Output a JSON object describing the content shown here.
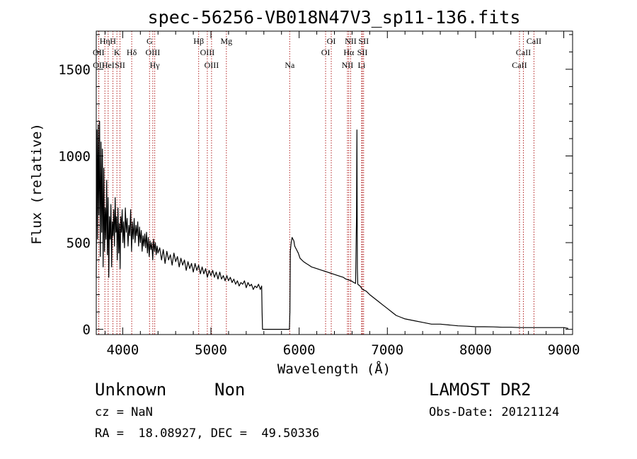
{
  "chart_data": {
    "type": "line",
    "title": "spec-56256-VB018N47V3_sp11-136.fits",
    "xlabel": "Wavelength (Å)",
    "ylabel": "Flux (relative)",
    "xlim": [
      3700,
      9100
    ],
    "ylim": [
      -30,
      1720
    ],
    "xticks": [
      4000,
      5000,
      6000,
      7000,
      8000,
      9000
    ],
    "yticks": [
      0,
      500,
      1000,
      1500
    ],
    "grid": false,
    "line_color": "#000000",
    "marker_color": "#b22222",
    "series": [
      {
        "points": [
          [
            3700,
            300
          ],
          [
            3708,
            1150
          ],
          [
            3715,
            520
          ],
          [
            3722,
            1180
          ],
          [
            3730,
            660
          ],
          [
            3738,
            1200
          ],
          [
            3746,
            420
          ],
          [
            3754,
            1080
          ],
          [
            3762,
            560
          ],
          [
            3770,
            1040
          ],
          [
            3778,
            360
          ],
          [
            3786,
            930
          ],
          [
            3794,
            450
          ],
          [
            3802,
            700
          ],
          [
            3810,
            520
          ],
          [
            3818,
            860
          ],
          [
            3826,
            430
          ],
          [
            3834,
            760
          ],
          [
            3842,
            300
          ],
          [
            3850,
            650
          ],
          [
            3858,
            520
          ],
          [
            3866,
            720
          ],
          [
            3874,
            360
          ],
          [
            3882,
            620
          ],
          [
            3890,
            540
          ],
          [
            3898,
            690
          ],
          [
            3906,
            480
          ],
          [
            3914,
            760
          ],
          [
            3922,
            560
          ],
          [
            3930,
            650
          ],
          [
            3938,
            400
          ],
          [
            3946,
            700
          ],
          [
            3954,
            440
          ],
          [
            3962,
            610
          ],
          [
            3970,
            350
          ],
          [
            3978,
            650
          ],
          [
            3986,
            560
          ],
          [
            3994,
            690
          ],
          [
            4002,
            500
          ],
          [
            4010,
            620
          ],
          [
            4020,
            470
          ],
          [
            4030,
            700
          ],
          [
            4040,
            560
          ],
          [
            4050,
            640
          ],
          [
            4060,
            480
          ],
          [
            4070,
            600
          ],
          [
            4080,
            540
          ],
          [
            4090,
            690
          ],
          [
            4100,
            450
          ],
          [
            4110,
            620
          ],
          [
            4120,
            520
          ],
          [
            4130,
            640
          ],
          [
            4140,
            500
          ],
          [
            4150,
            600
          ],
          [
            4160,
            540
          ],
          [
            4170,
            620
          ],
          [
            4180,
            480
          ],
          [
            4190,
            590
          ],
          [
            4200,
            500
          ],
          [
            4210,
            570
          ],
          [
            4220,
            450
          ],
          [
            4230,
            540
          ],
          [
            4240,
            480
          ],
          [
            4250,
            550
          ],
          [
            4260,
            470
          ],
          [
            4270,
            560
          ],
          [
            4280,
            440
          ],
          [
            4290,
            530
          ],
          [
            4300,
            420
          ],
          [
            4310,
            510
          ],
          [
            4320,
            460
          ],
          [
            4330,
            500
          ],
          [
            4340,
            400
          ],
          [
            4350,
            520
          ],
          [
            4360,
            450
          ],
          [
            4370,
            500
          ],
          [
            4380,
            430
          ],
          [
            4390,
            480
          ],
          [
            4400,
            440
          ],
          [
            4420,
            470
          ],
          [
            4440,
            400
          ],
          [
            4460,
            460
          ],
          [
            4480,
            380
          ],
          [
            4500,
            450
          ],
          [
            4520,
            400
          ],
          [
            4540,
            430
          ],
          [
            4560,
            370
          ],
          [
            4580,
            440
          ],
          [
            4600,
            390
          ],
          [
            4620,
            420
          ],
          [
            4640,
            360
          ],
          [
            4660,
            410
          ],
          [
            4680,
            370
          ],
          [
            4700,
            400
          ],
          [
            4720,
            340
          ],
          [
            4740,
            390
          ],
          [
            4760,
            350
          ],
          [
            4780,
            380
          ],
          [
            4800,
            330
          ],
          [
            4820,
            380
          ],
          [
            4840,
            340
          ],
          [
            4860,
            370
          ],
          [
            4880,
            320
          ],
          [
            4900,
            360
          ],
          [
            4920,
            320
          ],
          [
            4940,
            350
          ],
          [
            4960,
            300
          ],
          [
            4980,
            340
          ],
          [
            5000,
            310
          ],
          [
            5020,
            340
          ],
          [
            5040,
            300
          ],
          [
            5060,
            330
          ],
          [
            5080,
            290
          ],
          [
            5100,
            330
          ],
          [
            5120,
            290
          ],
          [
            5140,
            310
          ],
          [
            5160,
            280
          ],
          [
            5180,
            310
          ],
          [
            5200,
            280
          ],
          [
            5220,
            300
          ],
          [
            5240,
            270
          ],
          [
            5260,
            290
          ],
          [
            5280,
            260
          ],
          [
            5300,
            280
          ],
          [
            5320,
            250
          ],
          [
            5340,
            270
          ],
          [
            5360,
            260
          ],
          [
            5380,
            280
          ],
          [
            5400,
            240
          ],
          [
            5420,
            270
          ],
          [
            5440,
            250
          ],
          [
            5460,
            260
          ],
          [
            5480,
            230
          ],
          [
            5500,
            250
          ],
          [
            5520,
            240
          ],
          [
            5540,
            260
          ],
          [
            5560,
            230
          ],
          [
            5575,
            250
          ],
          [
            5580,
            100
          ],
          [
            5585,
            0
          ],
          [
            5890,
            0
          ],
          [
            5895,
            100
          ],
          [
            5900,
            450
          ],
          [
            5910,
            500
          ],
          [
            5920,
            530
          ],
          [
            5930,
            520
          ],
          [
            5940,
            510
          ],
          [
            5950,
            480
          ],
          [
            5970,
            460
          ],
          [
            5990,
            440
          ],
          [
            6010,
            410
          ],
          [
            6030,
            400
          ],
          [
            6050,
            390
          ],
          [
            6080,
            380
          ],
          [
            6110,
            370
          ],
          [
            6140,
            360
          ],
          [
            6170,
            355
          ],
          [
            6200,
            350
          ],
          [
            6230,
            345
          ],
          [
            6260,
            340
          ],
          [
            6290,
            335
          ],
          [
            6320,
            330
          ],
          [
            6350,
            325
          ],
          [
            6380,
            320
          ],
          [
            6410,
            315
          ],
          [
            6440,
            310
          ],
          [
            6470,
            305
          ],
          [
            6500,
            300
          ],
          [
            6530,
            290
          ],
          [
            6560,
            285
          ],
          [
            6590,
            280
          ],
          [
            6620,
            270
          ],
          [
            6640,
            265
          ],
          [
            6650,
            650
          ],
          [
            6655,
            1150
          ],
          [
            6660,
            350
          ],
          [
            6665,
            260
          ],
          [
            6690,
            250
          ],
          [
            6720,
            230
          ],
          [
            6760,
            220
          ],
          [
            6800,
            200
          ],
          [
            6850,
            180
          ],
          [
            6900,
            160
          ],
          [
            6950,
            140
          ],
          [
            7000,
            120
          ],
          [
            7050,
            100
          ],
          [
            7100,
            80
          ],
          [
            7150,
            70
          ],
          [
            7200,
            60
          ],
          [
            7300,
            50
          ],
          [
            7400,
            40
          ],
          [
            7500,
            30
          ],
          [
            7600,
            30
          ],
          [
            7700,
            25
          ],
          [
            7800,
            20
          ],
          [
            7900,
            18
          ],
          [
            8000,
            15
          ],
          [
            8100,
            15
          ],
          [
            8200,
            14
          ],
          [
            8300,
            12
          ],
          [
            8400,
            12
          ],
          [
            8500,
            10
          ],
          [
            8600,
            10
          ],
          [
            8700,
            10
          ],
          [
            8800,
            10
          ],
          [
            8900,
            10
          ],
          [
            9000,
            10
          ],
          [
            9050,
            5
          ]
        ]
      }
    ],
    "lines": [
      {
        "x": 3727,
        "label": "OII",
        "row": 2
      },
      {
        "x": 3729,
        "label": "OII",
        "row": 3
      },
      {
        "x": 3798,
        "label": "Hη",
        "row": 1
      },
      {
        "x": 3835,
        "label": "HeI",
        "row": 3
      },
      {
        "x": 3889,
        "label": "H",
        "row": 1
      },
      {
        "x": 3934,
        "label": "K",
        "row": 2
      },
      {
        "x": 3969,
        "label": "SII",
        "row": 3
      },
      {
        "x": 4102,
        "label": "Hδ",
        "row": 2
      },
      {
        "x": 4304,
        "label": "G",
        "row": 1
      },
      {
        "x": 4341,
        "label": "OIII",
        "row": 2
      },
      {
        "x": 4363,
        "label": "Hγ",
        "row": 3
      },
      {
        "x": 4861,
        "label": "Hβ",
        "row": 1
      },
      {
        "x": 4959,
        "label": "OIII",
        "row": 2
      },
      {
        "x": 5007,
        "label": "OIII",
        "row": 3
      },
      {
        "x": 5175,
        "label": "Mg",
        "row": 1
      },
      {
        "x": 5893,
        "label": "Na",
        "row": 3
      },
      {
        "x": 6300,
        "label": "OI",
        "row": 2
      },
      {
        "x": 6364,
        "label": "OI",
        "row": 1
      },
      {
        "x": 6548,
        "label": "NII",
        "row": 3
      },
      {
        "x": 6563,
        "label": "Hα",
        "row": 2
      },
      {
        "x": 6584,
        "label": "NII",
        "row": 1
      },
      {
        "x": 6708,
        "label": "Li",
        "row": 3
      },
      {
        "x": 6717,
        "label": "SII",
        "row": 2
      },
      {
        "x": 6731,
        "label": "SII",
        "row": 1
      },
      {
        "x": 8498,
        "label": "CaII",
        "row": 3
      },
      {
        "x": 8542,
        "label": "CaII",
        "row": 2
      },
      {
        "x": 8662,
        "label": "CaII",
        "row": 1
      }
    ]
  },
  "info": {
    "classification": "Unknown",
    "subclass": "Non",
    "survey": "LAMOST DR2",
    "cz": "cz = NaN",
    "obs_date": "Obs-Date: 20121124",
    "coords": "RA =  18.08927, DEC =  49.50336"
  }
}
